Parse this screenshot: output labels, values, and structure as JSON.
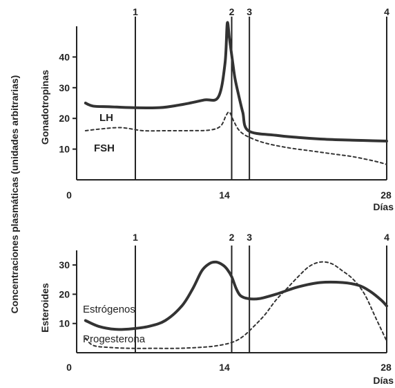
{
  "y_shared_label": "Concentraciones plasmáticas (unidades arbitrarias)",
  "chart_data": [
    {
      "type": "line",
      "ylabel": "Gonadotropinas",
      "xlabel": "Días",
      "xlim": [
        0,
        28
      ],
      "ylim": [
        0,
        50
      ],
      "x_ticks": [
        0,
        14,
        28
      ],
      "y_ticks": [
        10,
        20,
        30,
        40
      ],
      "markers": [
        {
          "label": "1",
          "x": 5.3
        },
        {
          "label": "2",
          "x": 14
        },
        {
          "label": "3",
          "x": 15.6
        },
        {
          "label": "4",
          "x": 28
        }
      ],
      "series": [
        {
          "name": "LH",
          "style": "solid",
          "x": [
            0.8,
            1.5,
            3,
            5,
            7.5,
            9.5,
            11.5,
            12.8,
            13.4,
            13.6,
            13.8,
            14.1,
            14.3,
            14.6,
            15.0,
            15.5,
            18,
            20,
            22,
            24,
            26,
            28
          ],
          "y": [
            25,
            24,
            23.8,
            23.5,
            23.5,
            24.5,
            26,
            27,
            38,
            51,
            46,
            38,
            33,
            28,
            22,
            16,
            14.5,
            13.8,
            13.3,
            13,
            12.8,
            12.6
          ]
        },
        {
          "name": "FSH",
          "style": "dashed",
          "x": [
            0.8,
            2,
            4,
            6,
            8,
            10,
            12,
            13,
            13.5,
            13.8,
            14.2,
            14.7,
            15.5,
            17,
            19,
            21,
            23,
            25,
            27,
            28
          ],
          "y": [
            16,
            16.5,
            17,
            16,
            16,
            16,
            16.2,
            17.5,
            21,
            22,
            19,
            16,
            14,
            12,
            10.5,
            9.5,
            8.5,
            7.5,
            6,
            5
          ]
        }
      ]
    },
    {
      "type": "line",
      "ylabel": "Esteroides",
      "xlabel": "Días",
      "xlim": [
        0,
        28
      ],
      "ylim": [
        0,
        35
      ],
      "x_ticks": [
        0,
        14,
        28
      ],
      "y_ticks": [
        10,
        20,
        30
      ],
      "markers": [
        {
          "label": "1",
          "x": 5.3
        },
        {
          "label": "2",
          "x": 14
        },
        {
          "label": "3",
          "x": 15.6
        },
        {
          "label": "4",
          "x": 28
        }
      ],
      "series": [
        {
          "name": "Estrógenos",
          "style": "solid",
          "x": [
            0.8,
            2,
            3.5,
            5,
            6.5,
            8,
            9.5,
            10.5,
            11.3,
            12,
            12.6,
            13.2,
            13.6,
            14.0,
            14.4,
            14.8,
            15.5,
            16.5,
            18,
            20,
            22,
            24,
            25.5,
            26.5,
            27.5,
            28
          ],
          "y": [
            11,
            9,
            8,
            8.2,
            9,
            11,
            16,
            22,
            28,
            30.5,
            31,
            30,
            28.5,
            26,
            22,
            19.5,
            18.5,
            18.5,
            20,
            22.5,
            24,
            24,
            23,
            21,
            18,
            16
          ]
        },
        {
          "name": "Progesterona",
          "style": "dashed",
          "x": [
            0.8,
            1.5,
            3,
            5,
            7,
            9,
            11,
            12.5,
            14,
            15,
            16,
            17,
            18,
            19,
            20,
            21,
            22,
            23,
            24,
            25,
            26,
            27,
            28
          ],
          "y": [
            5,
            2.5,
            1.8,
            1.5,
            1.5,
            1.5,
            1.8,
            2.3,
            3.5,
            5.5,
            9,
            13,
            18,
            22,
            26,
            29.5,
            31,
            30.5,
            28,
            25,
            20,
            12,
            4
          ]
        }
      ]
    }
  ]
}
